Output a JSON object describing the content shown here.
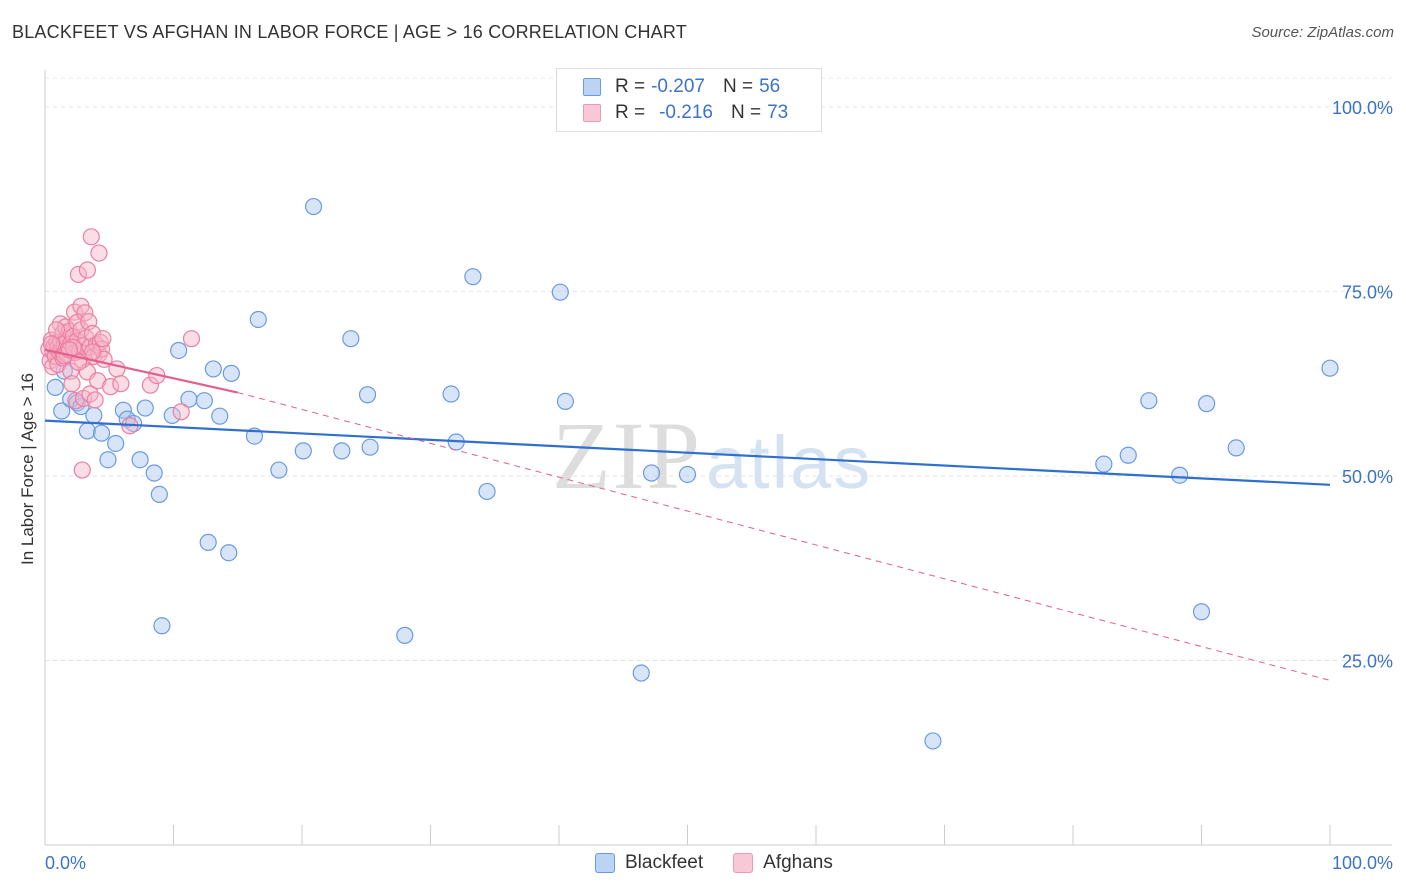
{
  "title": "BLACKFEET VS AFGHAN IN LABOR FORCE | AGE > 16 CORRELATION CHART",
  "source": "Source: ZipAtlas.com",
  "watermark": {
    "zip": "ZIP",
    "atlas": "atlas"
  },
  "legend": {
    "r_label": "R =",
    "n_label": "N =",
    "series": [
      {
        "name": "Blackfeet",
        "r": "-0.207",
        "n": "56"
      },
      {
        "name": "Afghans",
        "r": "-0.216",
        "n": "73"
      }
    ]
  },
  "colors": {
    "blackfeet_fill": "#a9c6ef",
    "blackfeet_stroke": "#6a9be0",
    "blackfeet_line": "#2e6fcf",
    "afghans_fill": "#f6b3c8",
    "afghans_stroke": "#ec7fa2",
    "afghans_line": "#e0608e",
    "tick_text": "#3b73c8"
  },
  "chart_data": {
    "type": "scatter",
    "title": "BLACKFEET VS AFGHAN IN LABOR FORCE | AGE > 16 CORRELATION CHART",
    "xlabel": "",
    "ylabel": "In Labor Force | Age > 16",
    "xlim": [
      0,
      100
    ],
    "ylim": [
      0,
      105
    ],
    "x_tick_labels": [
      "0.0%",
      "100.0%"
    ],
    "y_ticks": [
      25,
      50,
      75,
      100
    ],
    "y_tick_labels": [
      "25.0%",
      "50.0%",
      "75.0%",
      "100.0%"
    ],
    "grid": true,
    "legend_position": "top-center",
    "series": [
      {
        "name": "Blackfeet",
        "trend": {
          "x": [
            0,
            100
          ],
          "y": [
            57.5,
            48.8
          ]
        },
        "points": [
          {
            "x": 0.8,
            "y": 62
          },
          {
            "x": 1.3,
            "y": 58.8
          },
          {
            "x": 2,
            "y": 60.4
          },
          {
            "x": 2.5,
            "y": 59.9
          },
          {
            "x": 2.8,
            "y": 59.4
          },
          {
            "x": 3.3,
            "y": 56.1
          },
          {
            "x": 3.8,
            "y": 58.2
          },
          {
            "x": 4.4,
            "y": 55.8
          },
          {
            "x": 4.9,
            "y": 52.2
          },
          {
            "x": 5.5,
            "y": 54.4
          },
          {
            "x": 6.1,
            "y": 58.9
          },
          {
            "x": 6.4,
            "y": 57.7
          },
          {
            "x": 6.9,
            "y": 57.1
          },
          {
            "x": 7.4,
            "y": 52.2
          },
          {
            "x": 7.8,
            "y": 59.2
          },
          {
            "x": 8.5,
            "y": 50.4
          },
          {
            "x": 8.9,
            "y": 47.5
          },
          {
            "x": 9.1,
            "y": 29.7
          },
          {
            "x": 9.9,
            "y": 58.2
          },
          {
            "x": 10.4,
            "y": 67
          },
          {
            "x": 11.2,
            "y": 60.4
          },
          {
            "x": 12.4,
            "y": 60.2
          },
          {
            "x": 12.7,
            "y": 41
          },
          {
            "x": 13.1,
            "y": 64.5
          },
          {
            "x": 13.6,
            "y": 58.1
          },
          {
            "x": 14.3,
            "y": 39.6
          },
          {
            "x": 14.5,
            "y": 63.9
          },
          {
            "x": 16.3,
            "y": 55.4
          },
          {
            "x": 16.6,
            "y": 71.2
          },
          {
            "x": 18.2,
            "y": 50.8
          },
          {
            "x": 20.9,
            "y": 86.5
          },
          {
            "x": 20.1,
            "y": 53.4
          },
          {
            "x": 23.1,
            "y": 53.4
          },
          {
            "x": 23.8,
            "y": 68.6
          },
          {
            "x": 25.1,
            "y": 61
          },
          {
            "x": 25.3,
            "y": 53.9
          },
          {
            "x": 28,
            "y": 28.4
          },
          {
            "x": 31.6,
            "y": 61.1
          },
          {
            "x": 32,
            "y": 54.6
          },
          {
            "x": 33.3,
            "y": 77
          },
          {
            "x": 34.4,
            "y": 47.9
          },
          {
            "x": 40.1,
            "y": 74.9
          },
          {
            "x": 40.5,
            "y": 60.1
          },
          {
            "x": 46.4,
            "y": 23.3
          },
          {
            "x": 47.2,
            "y": 50.4
          },
          {
            "x": 50,
            "y": 50.2
          },
          {
            "x": 69.1,
            "y": 14.1
          },
          {
            "x": 82.4,
            "y": 51.6
          },
          {
            "x": 84.3,
            "y": 52.8
          },
          {
            "x": 85.9,
            "y": 60.2
          },
          {
            "x": 88.3,
            "y": 50.1
          },
          {
            "x": 90,
            "y": 31.6
          },
          {
            "x": 90.4,
            "y": 59.8
          },
          {
            "x": 92.7,
            "y": 53.8
          },
          {
            "x": 100,
            "y": 64.6
          },
          {
            "x": 1.5,
            "y": 64.2
          }
        ]
      },
      {
        "name": "Afghans",
        "trend": {
          "x": [
            0,
            15
          ],
          "y": [
            67.1,
            61.3
          ]
        },
        "trend_extended": {
          "x": [
            15,
            100
          ],
          "y": [
            61.3,
            22.3
          ]
        },
        "points": [
          {
            "x": 0.3,
            "y": 67.2
          },
          {
            "x": 0.4,
            "y": 65.6
          },
          {
            "x": 0.5,
            "y": 68.4
          },
          {
            "x": 0.6,
            "y": 66.9
          },
          {
            "x": 0.6,
            "y": 64.8
          },
          {
            "x": 0.7,
            "y": 67.5
          },
          {
            "x": 0.8,
            "y": 66.2
          },
          {
            "x": 0.9,
            "y": 68.1
          },
          {
            "x": 1,
            "y": 67.4
          },
          {
            "x": 1,
            "y": 65.1
          },
          {
            "x": 1.1,
            "y": 66.8
          },
          {
            "x": 1.2,
            "y": 70.6
          },
          {
            "x": 1.2,
            "y": 68.2
          },
          {
            "x": 1.3,
            "y": 67.1
          },
          {
            "x": 1.4,
            "y": 69.4
          },
          {
            "x": 1.4,
            "y": 66
          },
          {
            "x": 1.5,
            "y": 67.8
          },
          {
            "x": 1.6,
            "y": 70.2
          },
          {
            "x": 1.7,
            "y": 68.6
          },
          {
            "x": 1.7,
            "y": 66.5
          },
          {
            "x": 1.8,
            "y": 67.2
          },
          {
            "x": 1.9,
            "y": 69.6
          },
          {
            "x": 2,
            "y": 64.2
          },
          {
            "x": 2,
            "y": 67.9
          },
          {
            "x": 2.1,
            "y": 62.5
          },
          {
            "x": 2.2,
            "y": 68.9
          },
          {
            "x": 2.3,
            "y": 66.7
          },
          {
            "x": 2.3,
            "y": 72.2
          },
          {
            "x": 2.4,
            "y": 60.2
          },
          {
            "x": 2.5,
            "y": 70.8
          },
          {
            "x": 2.5,
            "y": 68.3
          },
          {
            "x": 2.6,
            "y": 77.3
          },
          {
            "x": 2.7,
            "y": 66.9
          },
          {
            "x": 2.8,
            "y": 69.8
          },
          {
            "x": 2.8,
            "y": 73
          },
          {
            "x": 2.9,
            "y": 65.7
          },
          {
            "x": 2.9,
            "y": 50.8
          },
          {
            "x": 3,
            "y": 67.6
          },
          {
            "x": 3,
            "y": 60.5
          },
          {
            "x": 3.1,
            "y": 72.1
          },
          {
            "x": 3.2,
            "y": 68.7
          },
          {
            "x": 3.3,
            "y": 64.1
          },
          {
            "x": 3.3,
            "y": 77.9
          },
          {
            "x": 3.4,
            "y": 70.9
          },
          {
            "x": 3.5,
            "y": 61.1
          },
          {
            "x": 3.5,
            "y": 67.5
          },
          {
            "x": 3.6,
            "y": 82.4
          },
          {
            "x": 3.7,
            "y": 69.3
          },
          {
            "x": 3.8,
            "y": 66.2
          },
          {
            "x": 3.9,
            "y": 60.3
          },
          {
            "x": 4,
            "y": 67.8
          },
          {
            "x": 4.1,
            "y": 62.9
          },
          {
            "x": 4.2,
            "y": 80.2
          },
          {
            "x": 4.2,
            "y": 66.5
          },
          {
            "x": 4.3,
            "y": 68.1
          },
          {
            "x": 4.4,
            "y": 67.2
          },
          {
            "x": 4.5,
            "y": 68.6
          },
          {
            "x": 4.6,
            "y": 65.8
          },
          {
            "x": 5.1,
            "y": 62.1
          },
          {
            "x": 5.6,
            "y": 64.5
          },
          {
            "x": 5.9,
            "y": 62.5
          },
          {
            "x": 6.6,
            "y": 56.8
          },
          {
            "x": 8.2,
            "y": 62.3
          },
          {
            "x": 8.7,
            "y": 63.6
          },
          {
            "x": 10.6,
            "y": 58.7
          },
          {
            "x": 11.4,
            "y": 68.6
          },
          {
            "x": 0.9,
            "y": 69.8
          },
          {
            "x": 1.5,
            "y": 66.3
          },
          {
            "x": 2.2,
            "y": 67.4
          },
          {
            "x": 3.7,
            "y": 66.8
          },
          {
            "x": 1.9,
            "y": 67.1
          },
          {
            "x": 0.5,
            "y": 67.9
          },
          {
            "x": 2.6,
            "y": 65.4
          }
        ]
      }
    ]
  }
}
